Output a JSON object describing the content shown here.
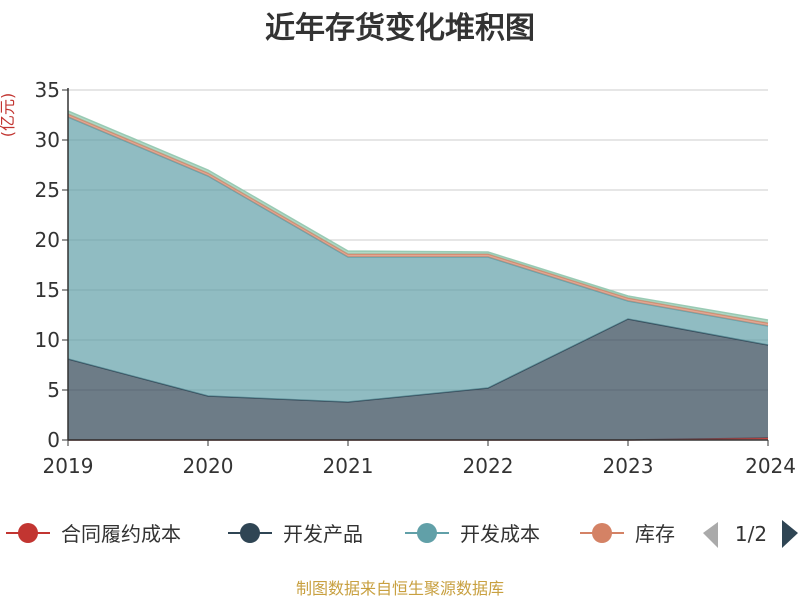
{
  "chart_data": {
    "type": "area",
    "stacked": true,
    "title": "近年存货变化堆积图",
    "unit_label": "(亿元)",
    "x": [
      "2019",
      "2020",
      "2021",
      "2022",
      "2023",
      "2024"
    ],
    "ylim": [
      0,
      35
    ],
    "yticks": [
      0,
      5,
      10,
      15,
      20,
      25,
      30,
      35
    ],
    "ytick_labels": [
      "0",
      "5",
      "10",
      "15",
      "20",
      "25",
      "30",
      "35"
    ],
    "grid": true,
    "legend_position": "bottom",
    "series": [
      {
        "name": "合同履约成本",
        "color": "#c23531",
        "values": [
          0,
          0,
          0,
          0,
          0,
          0.2
        ]
      },
      {
        "name": "开发产品",
        "color": "#2f4554",
        "values": [
          8.1,
          4.4,
          3.8,
          5.2,
          12.1,
          9.3
        ]
      },
      {
        "name": "开发成本",
        "color": "#61a0a8",
        "values": [
          24.2,
          22.0,
          14.5,
          13.1,
          1.8,
          1.9
        ]
      },
      {
        "name": "库存",
        "color": "#d48265",
        "values": [
          0.3,
          0.3,
          0.3,
          0.3,
          0.3,
          0.3
        ]
      },
      {
        "name": "",
        "color": "#91c7ae",
        "values": [
          0.3,
          0.3,
          0.3,
          0.2,
          0.2,
          0.3
        ]
      }
    ]
  },
  "legend": {
    "page_indicator": "1/2",
    "prev_icon": "arrow-left-icon",
    "next_icon": "arrow-right-icon"
  },
  "source_text": "制图数据来自恒生聚源数据库"
}
